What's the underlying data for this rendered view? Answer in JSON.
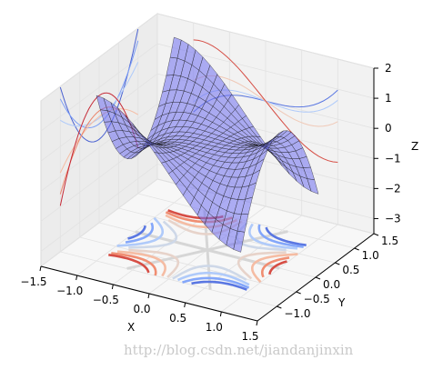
{
  "chart_data": {
    "type": "surface3d",
    "title": "",
    "surface": {
      "function": "x^3 - 3*x*y^2",
      "x_range": [
        -1.0,
        1.0
      ],
      "y_range": [
        -1.0,
        1.0
      ],
      "color": "#6f6ff0",
      "edge_color": "#222222",
      "alpha": 0.55
    },
    "contours": [
      {
        "direction": "z",
        "offset": -3.5,
        "colormap": "coolwarm"
      },
      {
        "direction": "x",
        "offset": -1.5,
        "colormap": "coolwarm"
      },
      {
        "direction": "y",
        "offset": 1.5,
        "colormap": "coolwarm"
      }
    ],
    "axes": {
      "x": {
        "label": "X",
        "lim": [
          -1.5,
          1.5
        ],
        "ticks": [
          "−1.5",
          "−1.0",
          "−0.5",
          "0.0",
          "0.5",
          "1.0",
          "1.5"
        ]
      },
      "y": {
        "label": "Y",
        "lim": [
          -1.5,
          1.5
        ],
        "ticks": [
          "−1.0",
          "−0.5",
          "0.0",
          "0.5",
          "1.0",
          "1.5"
        ]
      },
      "z": {
        "label": "Z",
        "lim": [
          -3.5,
          2
        ],
        "ticks": [
          "−3",
          "−2",
          "−1",
          "0",
          "1",
          "2"
        ]
      }
    },
    "grid": true
  },
  "watermark": "http://blog.csdn.net/jiandanjinxin"
}
